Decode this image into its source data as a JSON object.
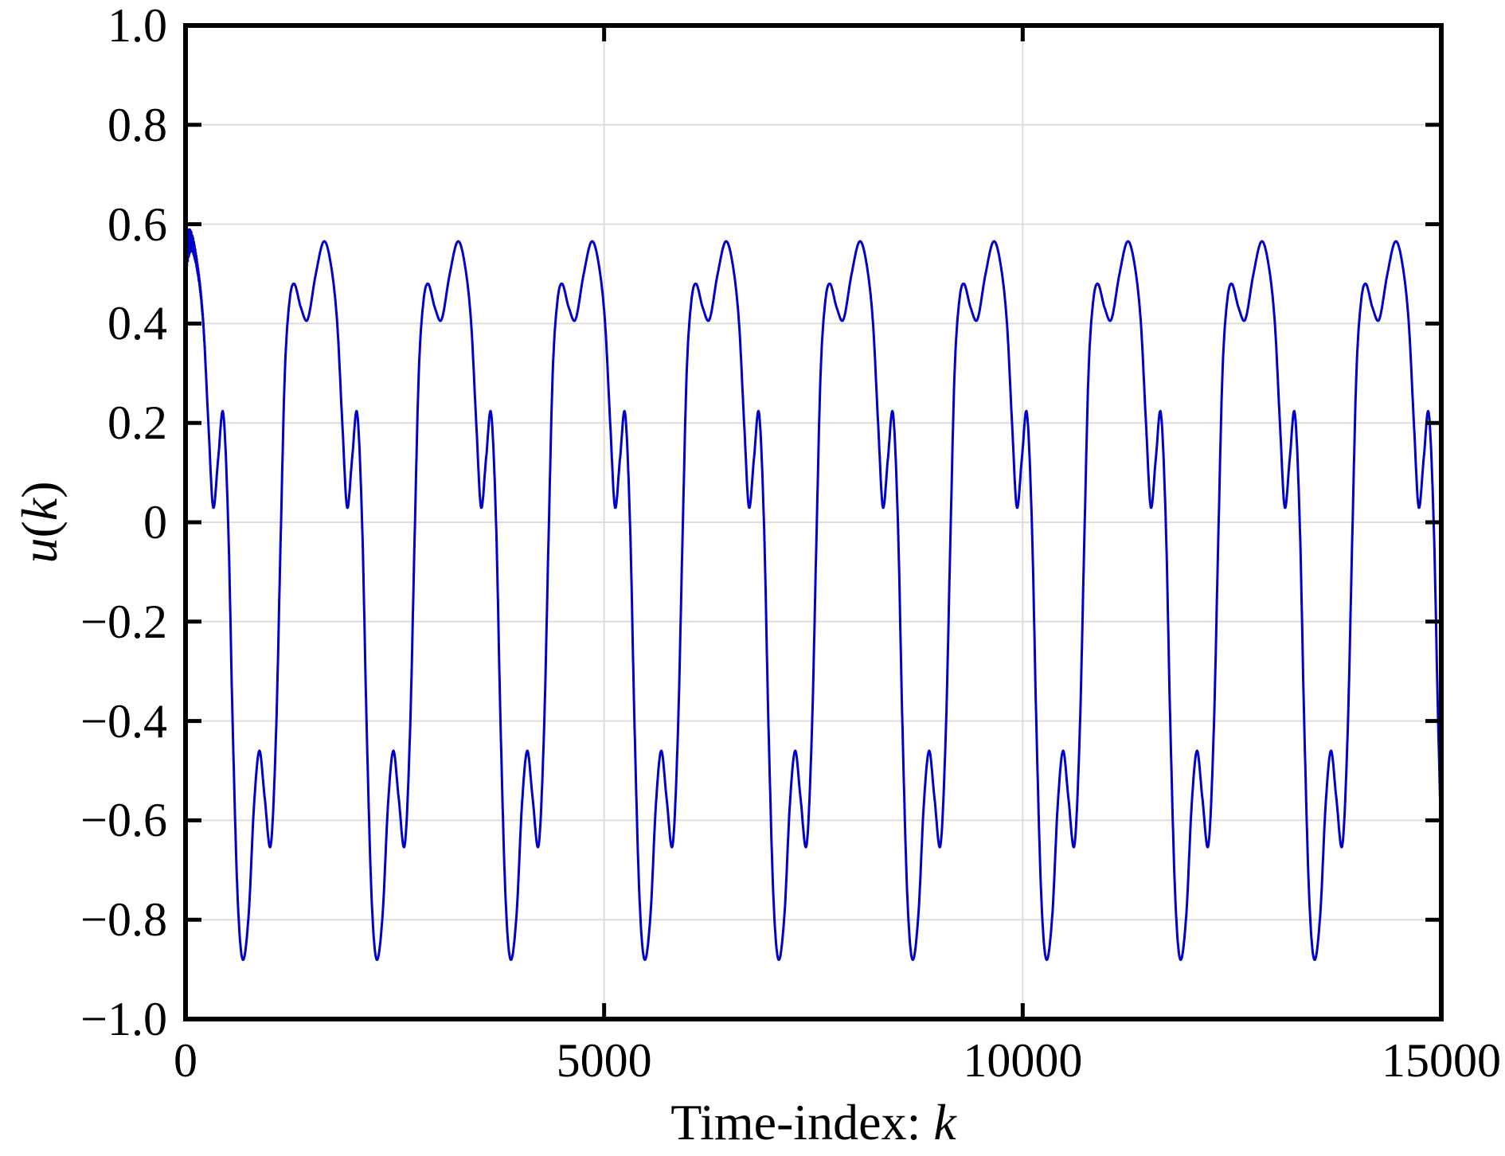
{
  "figure": {
    "background": "#ffffff",
    "frame_color": "#000000",
    "grid_color": "#dcdcdc"
  },
  "chart_data": {
    "type": "line",
    "title": "",
    "xlabel": "Time-index: k",
    "ylabel": "u(k)",
    "xlabel_parts": {
      "prefix": "Time-index: ",
      "var": "k"
    },
    "ylabel_parts": {
      "var1": "u",
      "open": "(",
      "var2": "k",
      "close": ")"
    },
    "xlim": [
      0,
      15000
    ],
    "ylim": [
      -1.0,
      1.0
    ],
    "grid": true,
    "legend": null,
    "xticks": [
      {
        "value": 0,
        "label": "0"
      },
      {
        "value": 5000,
        "label": "5000"
      },
      {
        "value": 10000,
        "label": "10000"
      },
      {
        "value": 15000,
        "label": "15000"
      }
    ],
    "yticks": [
      {
        "value": 1.0,
        "label": "1.0"
      },
      {
        "value": 0.8,
        "label": "0.8"
      },
      {
        "value": 0.6,
        "label": "0.6"
      },
      {
        "value": 0.4,
        "label": "0.4"
      },
      {
        "value": 0.2,
        "label": "0.2"
      },
      {
        "value": 0.0,
        "label": "0"
      },
      {
        "value": -0.2,
        "label": "−0.2"
      },
      {
        "value": -0.4,
        "label": "−0.4"
      },
      {
        "value": -0.6,
        "label": "−0.6"
      },
      {
        "value": -0.8,
        "label": "−0.8"
      },
      {
        "value": -1.0,
        "label": "−1.0"
      }
    ],
    "series": [
      {
        "name": "u(k)",
        "color": "#0000cc",
        "line_width": 3,
        "n_samples": 15000,
        "periodic": true,
        "period": 1600,
        "phase_offset": 918,
        "features": {
          "global_max": 0.565,
          "global_min": -0.88,
          "secondary_peaks": [
            0.48,
            0.22,
            -0.46
          ],
          "secondary_dips": [
            0.41,
            0.03,
            -0.65
          ],
          "first_deep_min_k": 682,
          "transient": "high-frequency dither band around u≈0.55 for k≈0–200"
        },
        "cycle_template": [
          [
            0.0,
            -0.88
          ],
          [
            0.045,
            -0.79
          ],
          [
            0.085,
            -0.57
          ],
          [
            0.125,
            -0.46
          ],
          [
            0.165,
            -0.555
          ],
          [
            0.21,
            -0.65
          ],
          [
            0.25,
            -0.42
          ],
          [
            0.285,
            -0.02
          ],
          [
            0.315,
            0.3
          ],
          [
            0.35,
            0.445
          ],
          [
            0.385,
            0.48
          ],
          [
            0.435,
            0.432
          ],
          [
            0.485,
            0.408
          ],
          [
            0.545,
            0.498
          ],
          [
            0.605,
            0.565
          ],
          [
            0.655,
            0.525
          ],
          [
            0.705,
            0.405
          ],
          [
            0.745,
            0.195
          ],
          [
            0.78,
            0.03
          ],
          [
            0.818,
            0.13
          ],
          [
            0.855,
            0.22
          ],
          [
            0.893,
            -0.01
          ],
          [
            0.925,
            -0.4
          ],
          [
            0.962,
            -0.75
          ]
        ],
        "transient_model": {
          "amplitude": 0.042,
          "decay": 90,
          "end_k": 240,
          "carrier_freq": 2.2,
          "fm_depth": 1.5,
          "fm_freq": 0.35,
          "phase": 2.0
        }
      }
    ]
  }
}
